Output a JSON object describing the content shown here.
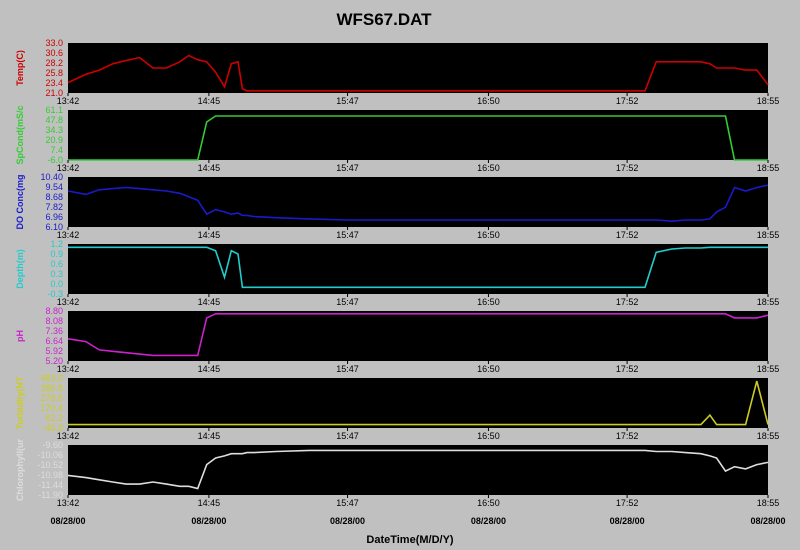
{
  "chart_data": {
    "type": "line",
    "title": "WFS67.DAT",
    "xlabel": "DateTime(M/D/Y)",
    "x_ticks": [
      "13:42",
      "14:45",
      "15:47",
      "16:50",
      "17:52",
      "18:55"
    ],
    "date_labels": [
      "08/28/00",
      "08/28/00",
      "08/28/00",
      "08/28/00",
      "08/28/00",
      "08/28/00"
    ],
    "background": "#000000",
    "grid": false,
    "x": [
      "13:42",
      "13:50",
      "13:56",
      "14:02",
      "14:08",
      "14:14",
      "14:20",
      "14:26",
      "14:32",
      "14:36",
      "14:40",
      "14:44",
      "14:48",
      "14:52",
      "14:55",
      "14:58",
      "15:00",
      "15:02",
      "15:05",
      "15:15",
      "15:30",
      "15:47",
      "16:05",
      "16:25",
      "16:50",
      "17:10",
      "17:30",
      "17:52",
      "17:56",
      "18:00",
      "18:05",
      "18:12",
      "18:18",
      "18:25",
      "18:29",
      "18:32",
      "18:36",
      "18:40",
      "18:45",
      "18:50",
      "18:55"
    ],
    "series": [
      {
        "name": "Temp(C)",
        "color": "#cc0000",
        "ticks": [
          "33.0",
          "30.6",
          "28.2",
          "25.8",
          "23.4",
          "21.0"
        ],
        "ylim": [
          21.0,
          33.0
        ],
        "values": [
          23.5,
          25.5,
          26.5,
          28.0,
          28.8,
          29.5,
          27.0,
          27.0,
          28.5,
          30.0,
          29.0,
          28.5,
          26.0,
          22.5,
          28.0,
          28.5,
          22.0,
          21.5,
          21.5,
          21.5,
          21.5,
          21.5,
          21.5,
          21.5,
          21.5,
          21.5,
          21.5,
          21.5,
          21.5,
          21.5,
          28.5,
          28.5,
          28.5,
          28.5,
          28.0,
          27.0,
          27.0,
          27.0,
          26.5,
          26.5,
          23.0
        ]
      },
      {
        "name": "SpCond(mS/c",
        "color": "#33cc33",
        "ticks": [
          "61.1",
          "47.8",
          "34.3",
          "20.9",
          "7.4",
          "-6.0"
        ],
        "ylim": [
          -6.0,
          61.1
        ],
        "values": [
          -6,
          -6,
          -6,
          -6,
          -6,
          -6,
          -6,
          -6,
          -6,
          -6,
          -6,
          45,
          53,
          53,
          53,
          53,
          53,
          53,
          53,
          53,
          53,
          53,
          53,
          53,
          53,
          53,
          53,
          53,
          53,
          53,
          53,
          53,
          53,
          53,
          53,
          53,
          53,
          -6,
          -6,
          -6,
          -6
        ]
      },
      {
        "name": "DO Conc(mg",
        "color": "#1a1acc",
        "ticks": [
          "10.40",
          "9.54",
          "8.68",
          "7.82",
          "6.96",
          "6.10"
        ],
        "ylim": [
          6.1,
          10.4
        ],
        "values": [
          9.2,
          8.9,
          9.3,
          9.4,
          9.5,
          9.4,
          9.3,
          9.2,
          9.0,
          8.7,
          8.4,
          7.2,
          7.6,
          7.4,
          7.2,
          7.3,
          7.1,
          7.1,
          7.0,
          6.9,
          6.8,
          6.7,
          6.7,
          6.7,
          6.7,
          6.7,
          6.7,
          6.7,
          6.7,
          6.7,
          6.7,
          6.6,
          6.7,
          6.7,
          6.8,
          7.4,
          7.8,
          9.5,
          9.2,
          9.5,
          9.7
        ]
      },
      {
        "name": "Depth(m)",
        "color": "#22cccc",
        "ticks": [
          "1.2",
          "0.9",
          "0.6",
          "0.3",
          "0.0",
          "-0.3"
        ],
        "ylim": [
          -0.3,
          1.2
        ],
        "values": [
          1.1,
          1.1,
          1.1,
          1.1,
          1.1,
          1.1,
          1.1,
          1.1,
          1.1,
          1.1,
          1.1,
          1.1,
          1.0,
          0.2,
          1.0,
          0.9,
          -0.1,
          -0.1,
          -0.1,
          -0.1,
          -0.1,
          -0.1,
          -0.1,
          -0.1,
          -0.1,
          -0.1,
          -0.1,
          -0.1,
          -0.1,
          -0.1,
          0.95,
          1.05,
          1.08,
          1.08,
          1.1,
          1.1,
          1.1,
          1.1,
          1.1,
          1.1,
          1.1
        ]
      },
      {
        "name": "pH",
        "color": "#cc22cc",
        "ticks": [
          "8.80",
          "8.08",
          "7.36",
          "6.64",
          "5.92",
          "5.20"
        ],
        "ylim": [
          5.2,
          8.8
        ],
        "values": [
          6.8,
          6.6,
          6.0,
          5.9,
          5.8,
          5.7,
          5.6,
          5.6,
          5.6,
          5.6,
          5.6,
          8.3,
          8.6,
          8.6,
          8.6,
          8.6,
          8.6,
          8.6,
          8.6,
          8.6,
          8.6,
          8.6,
          8.6,
          8.6,
          8.6,
          8.6,
          8.6,
          8.6,
          8.6,
          8.6,
          8.6,
          8.6,
          8.6,
          8.6,
          8.6,
          8.6,
          8.6,
          8.3,
          8.3,
          8.3,
          8.5
        ]
      },
      {
        "name": "Turbidity(NT",
        "color": "#cccc22",
        "ticks": [
          "483.0",
          "386.8",
          "278.6",
          "170.4",
          "62.2",
          "-46.0"
        ],
        "ylim": [
          -46.0,
          483.0
        ],
        "values": [
          -10,
          -10,
          -10,
          -10,
          -10,
          -10,
          -10,
          -10,
          -10,
          -10,
          -10,
          -10,
          -10,
          -10,
          -10,
          -10,
          -10,
          -10,
          -10,
          -10,
          -10,
          -10,
          -10,
          -10,
          -10,
          -10,
          -10,
          -10,
          -10,
          -10,
          -10,
          -10,
          -10,
          -10,
          90,
          -10,
          -10,
          -10,
          -10,
          450,
          -10
        ]
      },
      {
        "name": "Chlorophyll(ur",
        "color": "#dddddd",
        "ticks": [
          "-9.60",
          "-10.06",
          "-10.52",
          "-10.98",
          "-11.44",
          "-11.90"
        ],
        "ylim": [
          -11.9,
          -9.6
        ],
        "values": [
          -11.0,
          -11.1,
          -11.2,
          -11.3,
          -11.4,
          -11.4,
          -11.3,
          -11.4,
          -11.5,
          -11.5,
          -11.6,
          -10.5,
          -10.2,
          -10.1,
          -10.0,
          -10.0,
          -10.0,
          -9.95,
          -9.95,
          -9.9,
          -9.85,
          -9.85,
          -9.85,
          -9.85,
          -9.85,
          -9.85,
          -9.85,
          -9.85,
          -9.85,
          -9.85,
          -9.9,
          -9.9,
          -9.95,
          -10.0,
          -10.1,
          -10.2,
          -10.8,
          -10.6,
          -10.7,
          -10.5,
          -10.4
        ]
      }
    ]
  }
}
